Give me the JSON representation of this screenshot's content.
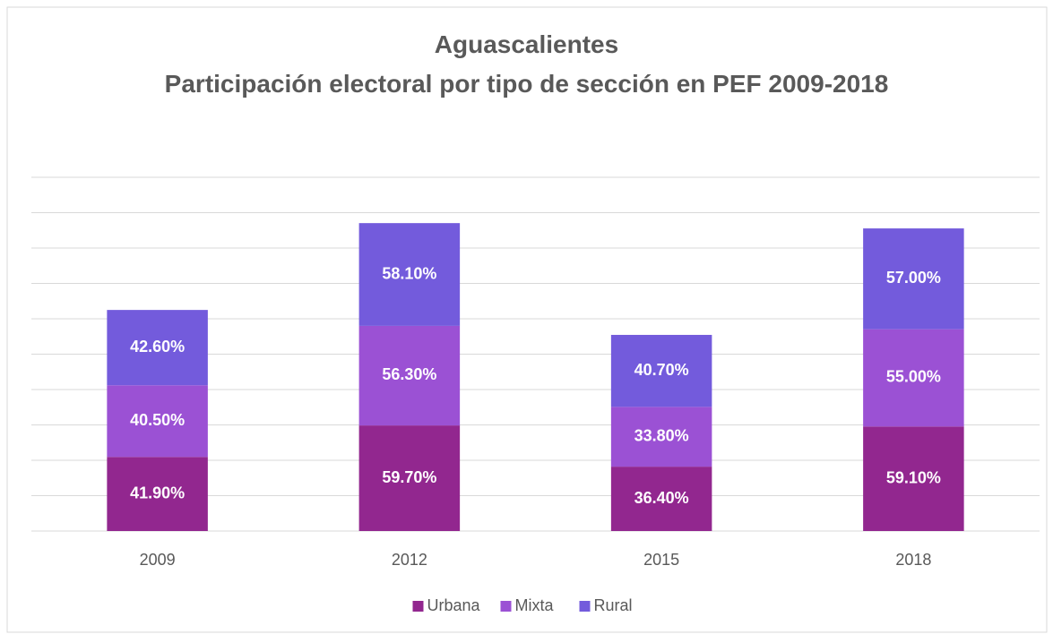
{
  "chart_data": {
    "type": "stacked_bar",
    "title": "Aguascalientes",
    "subtitle": "Participación electoral por tipo de sección en PEF 2009-2018",
    "categories": [
      "2009",
      "2012",
      "2015",
      "2018"
    ],
    "series": [
      {
        "name": "Urbana",
        "color": "#92278f",
        "values": [
          41.9,
          59.7,
          36.4,
          59.1
        ],
        "value_labels": [
          "41.90%",
          "59.70%",
          "36.40%",
          "59.10%"
        ]
      },
      {
        "name": "Mixta",
        "color": "#9b51d4",
        "values": [
          40.5,
          56.3,
          33.8,
          55.0
        ],
        "value_labels": [
          "40.50%",
          "56.30%",
          "33.80%",
          "55.00%"
        ]
      },
      {
        "name": "Rural",
        "color": "#735bdc",
        "values": [
          42.6,
          58.1,
          40.7,
          57.0
        ],
        "value_labels": [
          "42.60%",
          "58.10%",
          "40.70%",
          "57.00%"
        ]
      }
    ],
    "ylim": [
      0,
      200
    ],
    "yticks": [
      0,
      20,
      40,
      60,
      80,
      100,
      120,
      140,
      160,
      180,
      200
    ],
    "grid": true,
    "legend": "bottom"
  }
}
